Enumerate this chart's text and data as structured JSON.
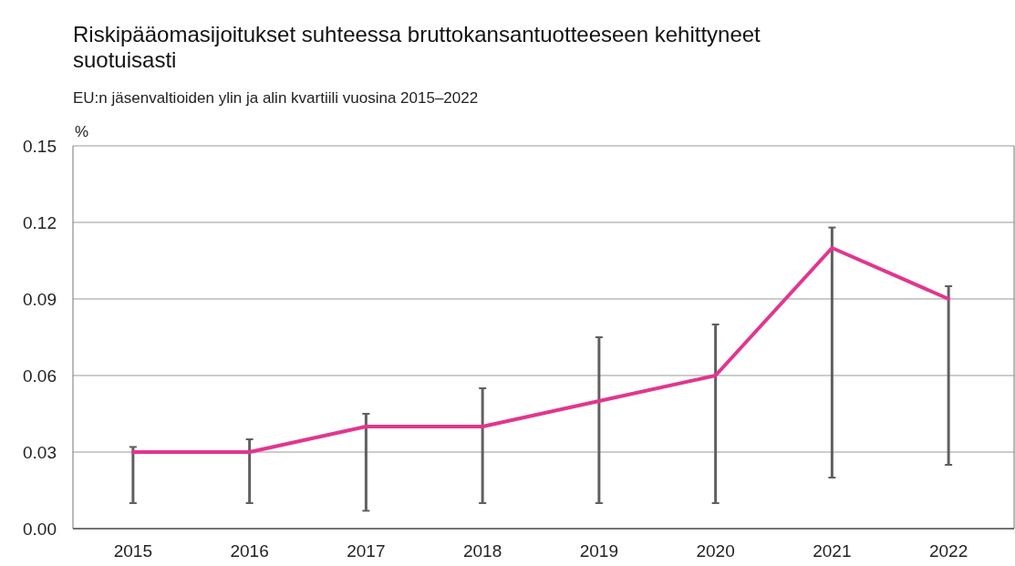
{
  "chart_data": {
    "type": "line",
    "title": "Riskipääomasijoitukset suhteessa bruttokansantuotteeseen kehittyneet suotuisasti",
    "subtitle": "EU:n jäsenvaltioiden ylin ja alin kvartiili vuosina 2015–2022",
    "ylabel": "%",
    "categories": [
      "2015",
      "2016",
      "2017",
      "2018",
      "2019",
      "2020",
      "2021",
      "2022"
    ],
    "series": [
      {
        "color": "#e2358f",
        "values": [
          0.03,
          0.03,
          0.04,
          0.04,
          0.05,
          0.06,
          0.11,
          0.09
        ],
        "errors": [
          [
            0.01,
            0.032
          ],
          [
            0.01,
            0.035
          ],
          [
            0.007,
            0.045
          ],
          [
            0.01,
            0.055
          ],
          [
            0.01,
            0.075
          ],
          [
            0.01,
            0.08
          ],
          [
            0.02,
            0.118
          ],
          [
            0.025,
            0.095
          ]
        ]
      }
    ],
    "ylim": [
      0,
      0.15
    ],
    "yticks": [
      {
        "value": 0,
        "label": "0.00"
      },
      {
        "value": 0.03,
        "label": "0.03"
      },
      {
        "value": 0.06,
        "label": "0.06"
      },
      {
        "value": 0.09,
        "label": "0.09"
      },
      {
        "value": 0.12,
        "label": "0.12"
      },
      {
        "value": 0.15,
        "label": "0.15"
      }
    ],
    "grid": "y",
    "marker": "none",
    "line_style": "solid"
  }
}
